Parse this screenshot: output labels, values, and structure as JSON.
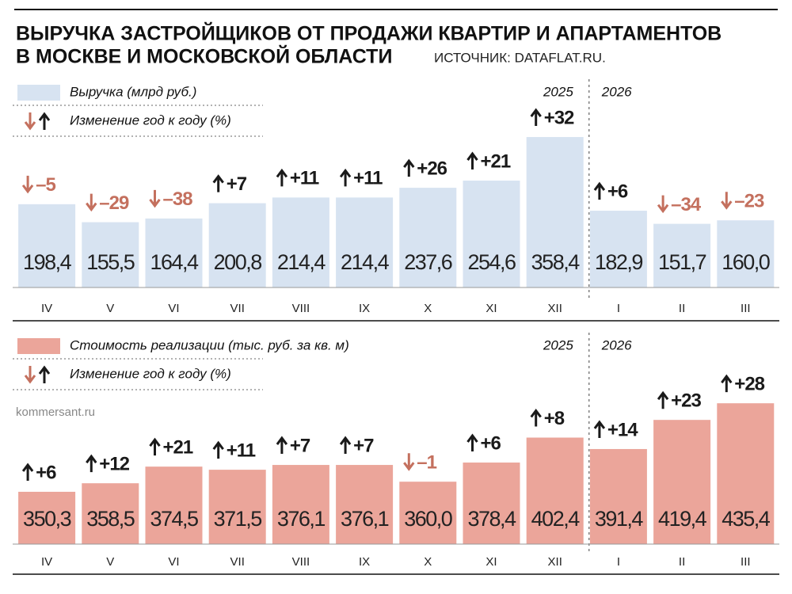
{
  "header": {
    "title": [
      "ВЫРУЧКА ЗАСТРОЙЩИКОВ ОТ ПРОДАЖИ КВАРТИР И АПАРТАМЕНТОВ",
      "В МОСКВЕ И МОСКОВСКОЙ ОБЛАСТИ"
    ],
    "source": "ИСТОЧНИК: DATAFLAT.RU."
  },
  "watermark": "kommersant.ru",
  "chart_data": [
    {
      "type": "bar",
      "categories": [
        "IV",
        "V",
        "VI",
        "VII",
        "VIII",
        "IX",
        "X",
        "XI",
        "XII",
        "I",
        "II",
        "III"
      ],
      "years": [
        "2025",
        "2026"
      ],
      "series": [
        {
          "name": "Выручка (млрд руб.)",
          "color": "#d7e3f1",
          "values": [
            198.4,
            155.5,
            164.4,
            200.8,
            214.4,
            214.4,
            237.6,
            254.6,
            358.4,
            182.9,
            151.7,
            160.0
          ],
          "value_labels": [
            "198,4",
            "155,5",
            "164,4",
            "200,8",
            "214,4",
            "214,4",
            "237,6",
            "254,6",
            "358,4",
            "182,9",
            "151,7",
            "160,0"
          ]
        },
        {
          "name": "Изменение год к году (%)",
          "values": [
            -5,
            -29,
            -38,
            7,
            11,
            11,
            26,
            21,
            32,
            6,
            -34,
            -23
          ],
          "value_labels": [
            "–5",
            "–29",
            "–38",
            "+7",
            "+11",
            "+11",
            "+26",
            "+21",
            "+32",
            "+6",
            "–34",
            "–23"
          ]
        }
      ],
      "colors": {
        "up": "#1a1a1a",
        "down": "#c4705e"
      },
      "ylim": [
        0,
        400
      ]
    },
    {
      "type": "bar",
      "categories": [
        "IV",
        "V",
        "VI",
        "VII",
        "VIII",
        "IX",
        "X",
        "XI",
        "XII",
        "I",
        "II",
        "III"
      ],
      "years": [
        "2025",
        "2026"
      ],
      "series": [
        {
          "name": "Стоимость реализации (тыс. руб. за кв. м)",
          "color": "#eba59a",
          "values": [
            350.3,
            358.5,
            374.5,
            371.5,
            376.1,
            376.1,
            360.0,
            378.4,
            402.4,
            391.4,
            419.4,
            435.4
          ],
          "value_labels": [
            "350,3",
            "358,5",
            "374,5",
            "371,5",
            "376,1",
            "376,1",
            "360,0",
            "378,4",
            "402,4",
            "391,4",
            "419,4",
            "435,4"
          ]
        },
        {
          "name": "Изменение год к году (%)",
          "values": [
            6,
            12,
            21,
            11,
            7,
            7,
            -1,
            6,
            8,
            14,
            23,
            28
          ],
          "value_labels": [
            "+6",
            "+12",
            "+21",
            "+11",
            "+7",
            "+7",
            "–1",
            "+6",
            "+8",
            "+14",
            "+23",
            "+28"
          ]
        }
      ],
      "colors": {
        "up": "#1a1a1a",
        "down": "#c4705e"
      },
      "ylim": [
        300,
        450
      ]
    }
  ]
}
